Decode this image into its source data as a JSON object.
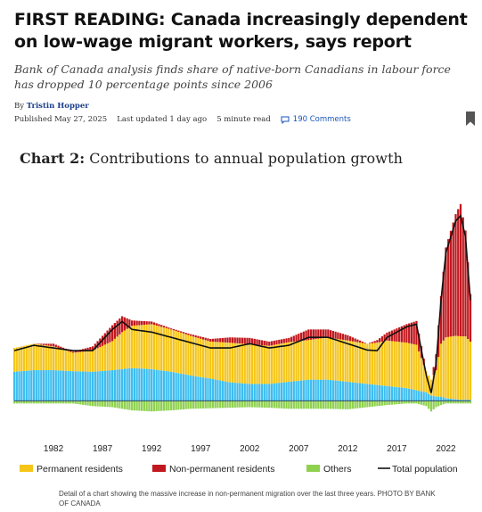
{
  "article": {
    "headline": "FIRST READING: Canada increasingly dependent on low-wage migrant workers, says report",
    "deck": "Bank of Canada analysis finds share of native-born Canadians in labour force has dropped 10 percentage points since 2006",
    "byline_prefix": "By ",
    "author": "Tristin Hopper",
    "published": "Published May 27, 2025",
    "updated": "Last updated 1 day ago",
    "read_time": "5 minute read",
    "comments": "190 Comments",
    "caption": "Detail of a chart showing the massive increase in non-permanent migration over the last three years. PHOTO BY BANK OF CANADA"
  },
  "icons": {
    "comments": "comment-bubble-icon",
    "bookmark": "bookmark-icon"
  },
  "colors": {
    "permanent": "#f5c518",
    "nonpermanent": "#c0181e",
    "others": "#8fd14f",
    "natural": "#3dbdf0",
    "total": "#111111",
    "author_link": "#1a3f8a",
    "comments_link": "#1a55b8"
  },
  "chart_data": {
    "type": "bar",
    "label": "Chart 2:",
    "title": "Contributions to annual population growth",
    "x_ticks": [
      "1982",
      "1987",
      "1992",
      "1997",
      "2002",
      "2007",
      "2012",
      "2017",
      "2022"
    ],
    "x_range": [
      1978,
      2024.5
    ],
    "y_range": [
      -0.55,
      3.7
    ],
    "stacked": true,
    "series": [
      {
        "name": "Permanent residents"
      },
      {
        "name": "Non-permanent residents"
      },
      {
        "name": "Others"
      },
      {
        "name": "Total population",
        "type": "line"
      }
    ],
    "unlabeled_series": [
      "natural increase"
    ],
    "x": [
      1978,
      1980,
      1982,
      1984,
      1986,
      1988,
      1989,
      1990,
      1992,
      1994,
      1996,
      1998,
      2000,
      2002,
      2004,
      2006,
      2008,
      2010,
      2012,
      2014,
      2015,
      2016,
      2018,
      2019,
      2020,
      2020.5,
      2021,
      2021.5,
      2022,
      2023,
      2023.5,
      2024,
      2024.5
    ],
    "natural_increase": [
      0.55,
      0.58,
      0.58,
      0.56,
      0.55,
      0.58,
      0.6,
      0.62,
      0.6,
      0.55,
      0.48,
      0.42,
      0.35,
      0.32,
      0.32,
      0.36,
      0.4,
      0.4,
      0.36,
      0.32,
      0.3,
      0.28,
      0.24,
      0.2,
      0.16,
      0.1,
      0.08,
      0.08,
      0.05,
      0.03,
      0.02,
      0.02,
      0.02
    ],
    "permanent_residents": [
      0.45,
      0.5,
      0.45,
      0.35,
      0.4,
      0.55,
      0.7,
      0.8,
      0.85,
      0.8,
      0.75,
      0.7,
      0.75,
      0.75,
      0.72,
      0.75,
      0.75,
      0.8,
      0.78,
      0.76,
      0.8,
      0.86,
      0.86,
      0.86,
      0.4,
      0.3,
      0.5,
      1.0,
      1.15,
      1.2,
      1.2,
      1.2,
      1.1
    ],
    "non_permanent_residents": [
      0.0,
      0.0,
      0.05,
      0.02,
      0.08,
      0.3,
      0.3,
      0.1,
      0.05,
      0.02,
      0.03,
      0.05,
      0.1,
      0.12,
      0.08,
      0.08,
      0.2,
      0.15,
      0.1,
      0.0,
      0.05,
      0.15,
      0.35,
      0.45,
      0.0,
      0.0,
      0.3,
      0.9,
      1.7,
      2.3,
      2.5,
      2.0,
      0.9
    ],
    "others": [
      -0.05,
      -0.05,
      -0.05,
      -0.05,
      -0.1,
      -0.12,
      -0.15,
      -0.18,
      -0.2,
      -0.18,
      -0.15,
      -0.14,
      -0.13,
      -0.12,
      -0.13,
      -0.15,
      -0.15,
      -0.15,
      -0.16,
      -0.12,
      -0.1,
      -0.08,
      -0.05,
      -0.05,
      -0.1,
      -0.2,
      -0.12,
      -0.08,
      -0.05,
      -0.05,
      -0.05,
      -0.05,
      -0.05
    ],
    "total_population": [
      0.95,
      1.05,
      1.0,
      0.95,
      0.95,
      1.35,
      1.5,
      1.35,
      1.3,
      1.2,
      1.1,
      1.0,
      1.0,
      1.08,
      1.0,
      1.05,
      1.2,
      1.2,
      1.08,
      0.96,
      0.95,
      1.2,
      1.4,
      1.45,
      0.48,
      0.15,
      0.7,
      1.9,
      2.8,
      3.4,
      3.5,
      3.1,
      1.9
    ],
    "legend_position": "bottom",
    "grid": false
  }
}
